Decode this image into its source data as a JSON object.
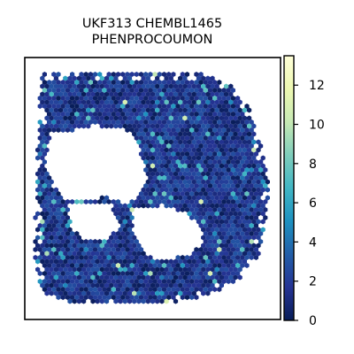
{
  "chart_data": {
    "type": "scatter",
    "subtype": "hexbin spatial map",
    "title_lines": [
      "UKF313 CHEMBL1465",
      "PHENPROCOUMON"
    ],
    "xlabel": "",
    "ylabel": "",
    "axes_ticks_visible": false,
    "grid": false,
    "colormap": "YlGnBu_r",
    "colorbar": {
      "location": "right",
      "range": [
        0,
        13.5
      ],
      "ticks": [
        0,
        2,
        4,
        6,
        8,
        10,
        12
      ],
      "tick_labels": [
        "0",
        "2",
        "4",
        "6",
        "8",
        "10",
        "12"
      ],
      "colors": [
        "#081d58",
        "#253494",
        "#225ea8",
        "#1d91c0",
        "#41b6c4",
        "#7fcdbb",
        "#c7e9b4",
        "#edf8b1",
        "#ffffd9"
      ]
    },
    "value_distribution": {
      "typical_range": [
        0,
        3
      ],
      "occasional_high": [
        4,
        8
      ],
      "rare_peaks": [
        9,
        11
      ]
    }
  }
}
